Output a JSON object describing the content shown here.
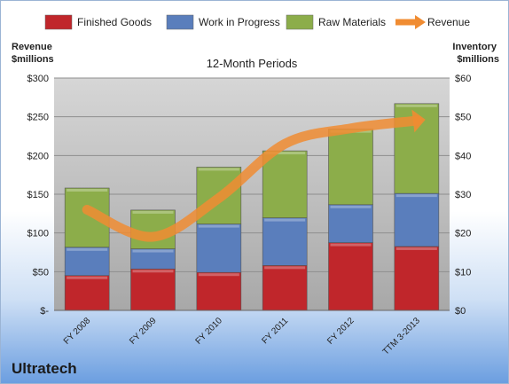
{
  "chart_data": {
    "type": "bar",
    "stacked": true,
    "title": "12-Month Periods",
    "categories": [
      "FY 2008",
      "FY 2009",
      "FY 2010",
      "FY 2011",
      "FY 2012",
      "TTM 3-2013"
    ],
    "left_axis": {
      "label": "Revenue\n$millions",
      "ticks": [
        "$-",
        "$50",
        "$100",
        "$150",
        "$200",
        "$250",
        "$300"
      ],
      "range": [
        0,
        300
      ]
    },
    "right_axis": {
      "label": "Inventory\n$millions",
      "ticks": [
        "$0",
        "$10",
        "$20",
        "$30",
        "$40",
        "$50",
        "$60"
      ],
      "range": [
        0,
        60
      ]
    },
    "series": [
      {
        "name": "Finished Goods",
        "axis": "right",
        "color": "#c0262b",
        "values": [
          9,
          10.7,
          9.8,
          11.6,
          17.5,
          16.5
        ]
      },
      {
        "name": "Work in Progress",
        "axis": "right",
        "color": "#5a7ebc",
        "values": [
          7.3,
          5.2,
          12.5,
          12.3,
          9.8,
          13.7
        ]
      },
      {
        "name": "Raw Materials",
        "axis": "right",
        "color": "#8cad4a",
        "values": [
          15.3,
          10,
          14.7,
          17.3,
          19.5,
          23.2
        ]
      },
      {
        "name": "Revenue",
        "axis": "left",
        "type": "line",
        "color": "#f08c32",
        "values": [
          130,
          95,
          145,
          215,
          235,
          245
        ]
      }
    ],
    "legend": {
      "position": "top"
    },
    "grid": true
  },
  "company": "Ultratech"
}
